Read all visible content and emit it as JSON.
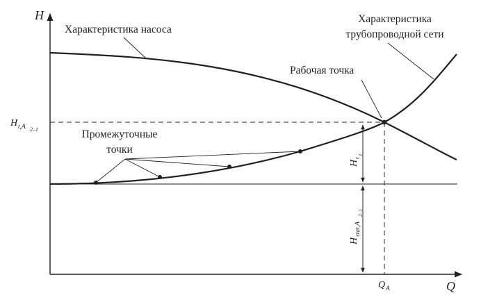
{
  "axes": {
    "y_name": "H",
    "x_name": "Q"
  },
  "curves": {
    "pump_label": "Характеристика насоса",
    "network_label_line1": "Характеристика",
    "network_label_line2": "трубопроводной сети"
  },
  "operating_point": {
    "label": "Рабочая точка"
  },
  "intermediate_points": {
    "label_line1": "Промежуточные",
    "label_line2": "точки",
    "count": 4
  },
  "symbols": {
    "h_axis_main": "H",
    "h_axis_sub": "t,A",
    "h_axis_subsub": "2–1",
    "q_main": "Q",
    "q_sub": "A",
    "ht_main": "H",
    "ht_sub": "t",
    "ht_subsub": "1",
    "hstat_main": "H",
    "hstat_sub": "stat,A",
    "hstat_subsub": "2–1"
  },
  "colors": {
    "ink": "#231f20",
    "background": "#ffffff"
  }
}
